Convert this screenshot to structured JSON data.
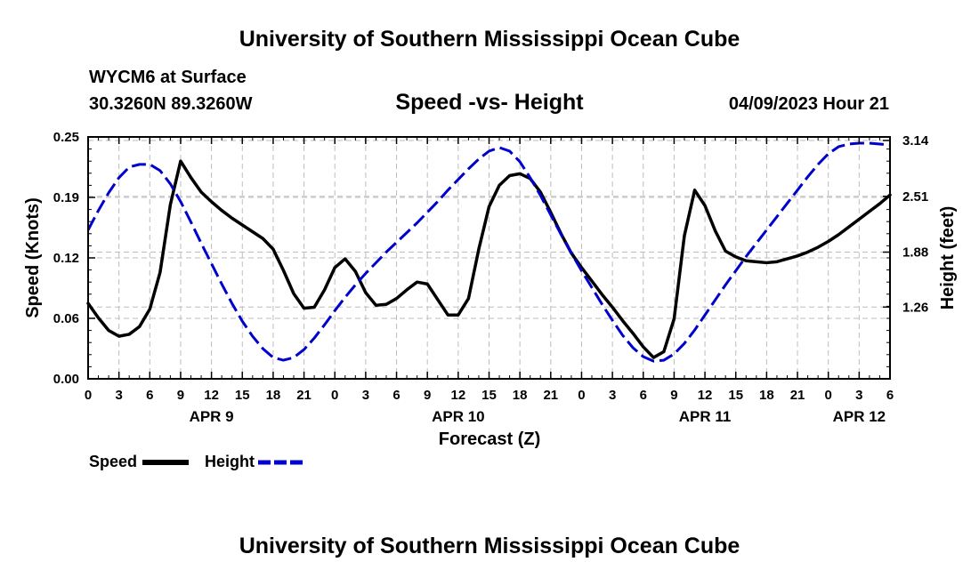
{
  "header": {
    "title": "University of Southern Mississippi Ocean Cube",
    "station": "WYCM6 at Surface",
    "coordinates": "30.3260N  89.3260W",
    "timestamp": "04/09/2023 Hour 21"
  },
  "footer": {
    "title": "University of Southern Mississippi Ocean Cube"
  },
  "chart_data": {
    "type": "line",
    "title": "Speed -vs- Height",
    "xlabel": "Forecast (Z)",
    "ylabel_left": "Speed (Knots)",
    "ylabel_right": "Height (feet)",
    "grid": true,
    "x_tick_labels": [
      "0",
      "3",
      "6",
      "9",
      "12",
      "15",
      "18",
      "21",
      "0",
      "3",
      "6",
      "9",
      "12",
      "15",
      "18",
      "21",
      "0",
      "3",
      "6",
      "9",
      "12",
      "15",
      "18",
      "21",
      "0",
      "3",
      "6"
    ],
    "date_labels": [
      {
        "label": "APR 9",
        "at_hour": 12
      },
      {
        "label": "APR 10",
        "at_hour": 36
      },
      {
        "label": "APR 11",
        "at_hour": 60
      },
      {
        "label": "APR 12",
        "at_hour": 75
      }
    ],
    "xlim": [
      0,
      78
    ],
    "ylim_left": [
      0,
      0.25
    ],
    "yticks_left": [
      "0.00",
      "0.06",
      "0.12",
      "0.19",
      "0.25"
    ],
    "ylim_right": [
      0.45,
      3.18
    ],
    "yticks_right": [
      "1.26",
      "1.88",
      "2.51",
      "3.14"
    ],
    "series": [
      {
        "name": "Speed",
        "axis": "left",
        "color": "#000000",
        "style": "solid",
        "x": [
          0,
          1,
          2,
          3,
          4,
          5,
          6,
          7,
          8,
          9,
          10,
          11,
          12,
          13,
          14,
          15,
          16,
          17,
          18,
          19,
          20,
          21,
          22,
          23,
          24,
          25,
          26,
          27,
          28,
          29,
          30,
          31,
          32,
          33,
          34,
          35,
          36,
          37,
          38,
          39,
          40,
          41,
          42,
          43,
          44,
          45,
          46,
          47,
          48,
          49,
          50,
          51,
          52,
          53,
          54,
          55,
          56,
          57,
          58,
          59,
          60,
          61,
          62,
          63,
          64,
          65,
          66,
          67,
          68,
          69,
          70,
          71,
          72,
          73,
          74,
          75,
          76,
          77,
          78
        ],
        "values": [
          0.078,
          0.063,
          0.05,
          0.044,
          0.046,
          0.054,
          0.072,
          0.11,
          0.18,
          0.225,
          0.208,
          0.193,
          0.183,
          0.174,
          0.166,
          0.159,
          0.152,
          0.145,
          0.134,
          0.112,
          0.088,
          0.073,
          0.074,
          0.092,
          0.115,
          0.124,
          0.111,
          0.089,
          0.076,
          0.077,
          0.083,
          0.092,
          0.1,
          0.098,
          0.082,
          0.066,
          0.066,
          0.083,
          0.134,
          0.178,
          0.2,
          0.21,
          0.212,
          0.207,
          0.193,
          0.172,
          0.15,
          0.13,
          0.115,
          0.101,
          0.087,
          0.074,
          0.06,
          0.047,
          0.033,
          0.022,
          0.028,
          0.062,
          0.148,
          0.195,
          0.179,
          0.153,
          0.132,
          0.126,
          0.122,
          0.121,
          0.12,
          0.121,
          0.124,
          0.127,
          0.131,
          0.136,
          0.142,
          0.149,
          0.157,
          0.165,
          0.173,
          0.181,
          0.19
        ]
      },
      {
        "name": "Height",
        "axis": "right",
        "color": "#0000cc",
        "style": "dashed",
        "x": [
          0,
          1,
          2,
          3,
          4,
          5,
          6,
          7,
          8,
          9,
          10,
          11,
          12,
          13,
          14,
          15,
          16,
          17,
          18,
          19,
          20,
          21,
          22,
          23,
          24,
          25,
          26,
          27,
          28,
          29,
          30,
          31,
          32,
          33,
          34,
          35,
          36,
          37,
          38,
          39,
          40,
          41,
          42,
          43,
          44,
          45,
          46,
          47,
          48,
          49,
          50,
          51,
          52,
          53,
          54,
          55,
          56,
          57,
          58,
          59,
          60,
          61,
          62,
          63,
          64,
          65,
          66,
          67,
          68,
          69,
          70,
          71,
          72,
          73,
          74,
          75,
          76,
          77,
          78
        ],
        "values": [
          2.13,
          2.35,
          2.55,
          2.72,
          2.84,
          2.87,
          2.87,
          2.8,
          2.65,
          2.45,
          2.22,
          1.98,
          1.75,
          1.52,
          1.3,
          1.1,
          0.93,
          0.79,
          0.69,
          0.66,
          0.69,
          0.78,
          0.91,
          1.06,
          1.22,
          1.37,
          1.51,
          1.64,
          1.76,
          1.88,
          1.99,
          2.1,
          2.21,
          2.33,
          2.45,
          2.58,
          2.7,
          2.82,
          2.93,
          3.02,
          3.06,
          3.02,
          2.9,
          2.72,
          2.52,
          2.3,
          2.08,
          1.87,
          1.67,
          1.48,
          1.29,
          1.11,
          0.94,
          0.8,
          0.7,
          0.65,
          0.66,
          0.73,
          0.85,
          1.0,
          1.17,
          1.34,
          1.51,
          1.67,
          1.83,
          1.98,
          2.13,
          2.28,
          2.43,
          2.58,
          2.73,
          2.87,
          2.99,
          3.07,
          3.1,
          3.11,
          3.11,
          3.1,
          3.09
        ]
      }
    ],
    "legend": [
      {
        "label": "Speed",
        "color": "#000000",
        "style": "solid"
      },
      {
        "label": "Height",
        "color": "#0000cc",
        "style": "dashed"
      }
    ],
    "legend_placement": "bottom-left"
  }
}
